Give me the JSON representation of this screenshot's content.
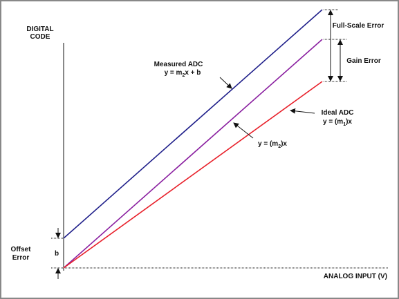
{
  "axes": {
    "y_label": [
      "DIGITAL",
      "CODE"
    ],
    "x_label": "ANALOG INPUT (V)"
  },
  "annotations": {
    "measured": {
      "title": "Measured ADC",
      "eq": {
        "prefix": "y = m",
        "sub": "2",
        "suffix": "x + b"
      }
    },
    "ideal": {
      "title": "Ideal ADC",
      "eq": {
        "prefix": "y = (m",
        "sub": "1",
        "suffix": ")x"
      }
    },
    "gain_line": {
      "eq": {
        "prefix": "y = (m",
        "sub": "2",
        "suffix": ")x"
      }
    },
    "full_scale_error": "Full-Scale Error",
    "gain_error": "Gain Error",
    "offset_error": [
      "Offset",
      "Error"
    ],
    "offset_symbol": "b"
  }
}
